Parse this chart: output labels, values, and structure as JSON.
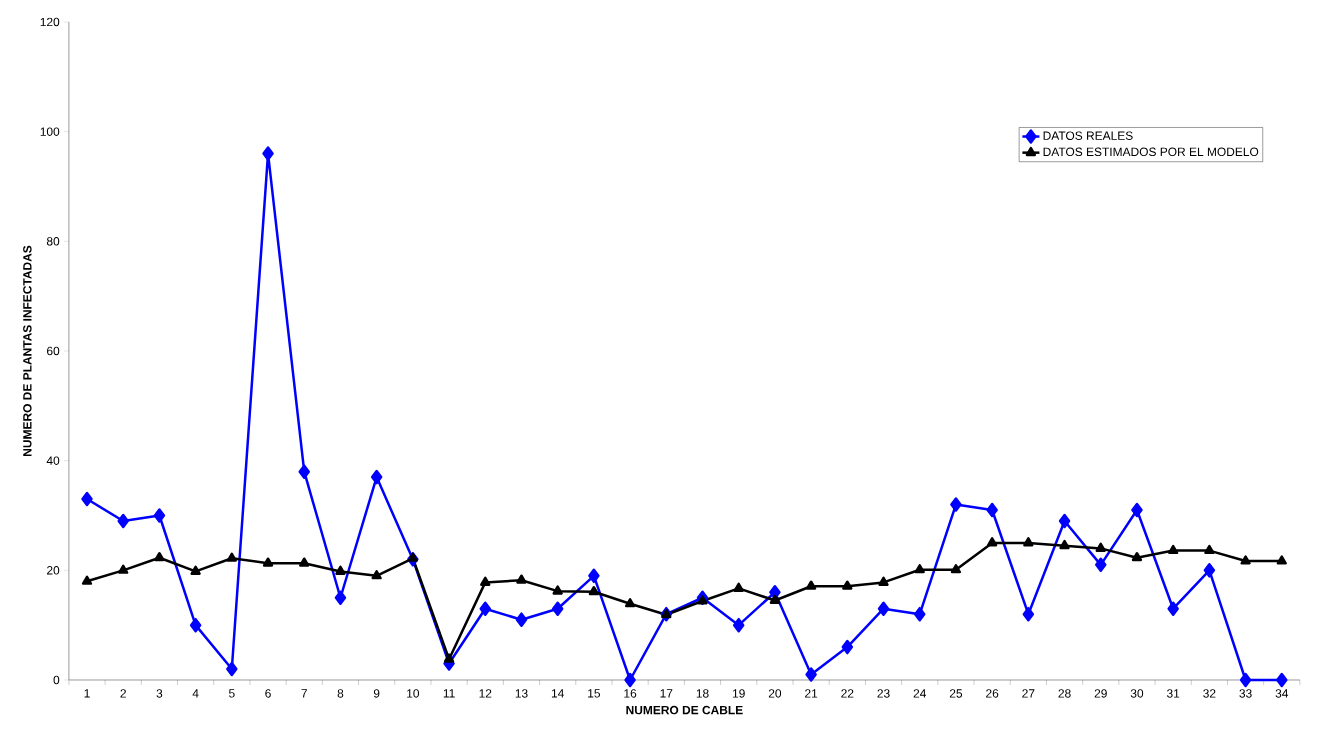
{
  "chart_data": {
    "type": "line",
    "xlabel": "NUMERO DE CABLE",
    "ylabel": "NUMERO DE PLANTAS INFECTADAS",
    "categories": [
      "1",
      "2",
      "3",
      "4",
      "5",
      "6",
      "7",
      "8",
      "9",
      "10",
      "11",
      "12",
      "13",
      "14",
      "15",
      "16",
      "17",
      "18",
      "19",
      "20",
      "21",
      "22",
      "23",
      "24",
      "25",
      "26",
      "27",
      "28",
      "29",
      "30",
      "31",
      "32",
      "33",
      "34"
    ],
    "series": [
      {
        "name": "DATOS REALES",
        "color": "#0000ff",
        "marker": "diamond",
        "values": [
          33,
          29,
          30,
          10,
          2,
          96,
          38,
          15,
          37,
          22,
          3,
          13,
          11,
          13,
          19,
          0,
          12,
          15,
          10,
          16,
          1,
          6,
          13,
          12,
          32,
          31,
          12,
          29,
          21,
          31,
          13,
          20,
          0,
          0
        ]
      },
      {
        "name": "DATOS ESTIMADOS POR EL MODELO",
        "color": "#000000",
        "marker": "triangle",
        "values": [
          18,
          20,
          22.3,
          19.8,
          22.2,
          21.3,
          21.3,
          19.8,
          19,
          22.2,
          3.8,
          17.8,
          18.2,
          16.2,
          16.1,
          13.9,
          11.9,
          14.4,
          16.7,
          14.5,
          17.1,
          17.1,
          17.8,
          20.1,
          20.1,
          25,
          25,
          24.5,
          24,
          22.3,
          23.6,
          23.6,
          21.7,
          21.7
        ]
      }
    ],
    "ylim": [
      0,
      120
    ],
    "yticks": [
      0,
      20,
      40,
      60,
      80,
      100,
      120
    ],
    "legend": "top right",
    "grid": false,
    "line_style": "solid"
  }
}
